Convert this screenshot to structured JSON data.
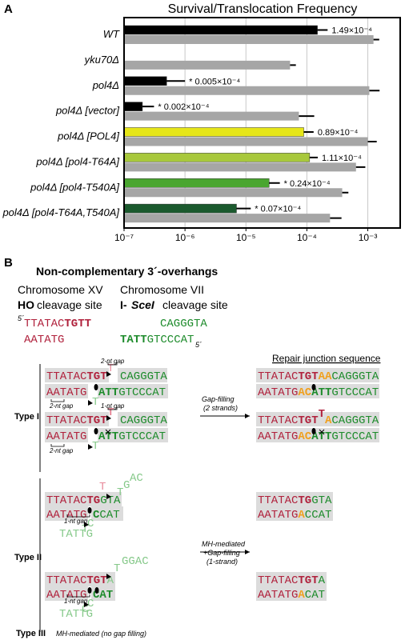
{
  "panel_label": "A",
  "chart_data": {
    "type": "bar",
    "orientation": "horizontal",
    "title": "Survival/Translocation Frequency",
    "categories": [
      "WT",
      "yku70Δ",
      "pol4Δ",
      "pol4Δ [vector]",
      "pol4Δ [POL4]",
      "pol4Δ [pol4-T64A]",
      "pol4Δ [pol4-T540A]",
      "pol4Δ [pol4-T64A,T540A]"
    ],
    "series": [
      {
        "colors": [
          "#000000",
          "#000000",
          "#000000",
          "#000000",
          "#e6e619",
          "#a8c83c",
          "#4aa630",
          "#1b5a2e"
        ],
        "values": [
          0.000149,
          null,
          5e-07,
          2e-07,
          8.9e-05,
          0.000111,
          2.4e-05,
          7e-06
        ],
        "errors": [
          7e-05,
          null,
          5e-07,
          1.1e-07,
          4e-05,
          4e-05,
          1.2e-05,
          5e-06
        ],
        "value_labels": [
          "1.49×10⁻⁴",
          null,
          "* 0.005×10⁻⁴",
          "* 0.002×10⁻⁴",
          "0.89×10⁻⁴",
          "1.11×10⁻⁴",
          "* 0.24×10⁻⁴",
          "* 0.07×10⁻⁴"
        ]
      },
      {
        "color": "#a6a6a6",
        "values": [
          0.00124,
          5.3e-05,
          0.00106,
          7.4e-05,
          0.001,
          0.00064,
          0.00038,
          0.00024
        ],
        "errors": [
          0.0003,
          1.3e-05,
          0.0005,
          5.8e-05,
          0.0004,
          0.00027,
          0.0001,
          0.00013
        ]
      }
    ],
    "xscale": "log",
    "xlim": [
      1e-07,
      0.0034
    ],
    "xticks": [
      {
        "value": 1e-07,
        "label": "10⁻⁷"
      },
      {
        "value": 1e-06,
        "label": "10⁻⁶"
      },
      {
        "value": 1e-05,
        "label": "10⁻⁵"
      },
      {
        "value": 0.0001,
        "label": "10⁻⁴"
      },
      {
        "value": 0.001,
        "label": "10⁻³"
      }
    ],
    "grid": true
  },
  "diagram": {
    "labels": [
      {
        "text": "B",
        "style": "bold"
      },
      {
        "text": "Non-complementary 3´-overhangs",
        "style": "bold"
      },
      {
        "text": "Chromosome XV"
      },
      {
        "text": "HO",
        "style": "bold"
      },
      {
        "text": "cleavage site"
      },
      {
        "text": "Chromosome VII"
      },
      {
        "text": "I-",
        "style": "bold"
      },
      {
        "text": "SceI",
        "style": "bold-italic"
      },
      {
        "text": "cleavage site"
      },
      {
        "text": "Repair junction sequence",
        "style": "underline"
      },
      {
        "text": "Type I",
        "style": "bold"
      },
      {
        "text": "Gap-filling",
        "style": "italic"
      },
      {
        "text": "(2 strands)",
        "style": "italic"
      },
      {
        "text": "Type II",
        "style": "bold"
      },
      {
        "text": "MH-mediated",
        "style": "italic"
      },
      {
        "text": "+Gap-filling",
        "style": "italic"
      },
      {
        "text": "(1-strand)",
        "style": "italic"
      },
      {
        "text": "Type III",
        "style": "bold"
      },
      {
        "text": "MH-mediated (no gap filling)",
        "style": "italic"
      }
    ],
    "notes": [
      "5´",
      "5´",
      "2-nt gap",
      "2-nt gap",
      "1-nt gap",
      "2-nt gap",
      "1-nt gap",
      "1-nt gap"
    ],
    "fragments": [
      {
        "text": "TTATAC",
        "color": "#b0213c"
      },
      {
        "text": "TGTT",
        "color": "#b0213c",
        "bold": true
      },
      {
        "text": "AATATG",
        "color": "#b0213c"
      },
      {
        "text": "CAGGGTA",
        "color": "#1d8b2b"
      },
      {
        "text": "TATT",
        "color": "#1d8b2b",
        "bold": true
      },
      {
        "text": "GTCCCAT",
        "color": "#1d8b2b"
      },
      {
        "text": "TTATAC",
        "color": "#b0213c"
      },
      {
        "text": "TGT",
        "color": "#b0213c",
        "bold": true
      },
      {
        "text": "T",
        "color": "#e8899a"
      },
      {
        "text": "CAGGGTA",
        "color": "#1d8b2b"
      },
      {
        "text": "AATATG",
        "color": "#b0213c"
      },
      {
        "text": "T",
        "color": "#86c98a"
      },
      {
        "text": "ATT",
        "color": "#1d8b2b",
        "bold": true
      },
      {
        "text": "GTCCCAT",
        "color": "#1d8b2b"
      },
      {
        "text": "TTATAC",
        "color": "#b0213c"
      },
      {
        "text": "TGT",
        "color": "#b0213c",
        "bold": true
      },
      {
        "text": "T",
        "color": "#e8899a",
        "bold": true
      },
      {
        "text": "CAGGGTA",
        "color": "#1d8b2b"
      },
      {
        "text": "AATATG",
        "color": "#b0213c"
      },
      {
        "text": "T",
        "color": "#86c98a"
      },
      {
        "text": "ATT",
        "color": "#1d8b2b",
        "bold": true
      },
      {
        "text": "GTCCCAT",
        "color": "#1d8b2b"
      },
      {
        "text": "TTATAC",
        "color": "#b0213c"
      },
      {
        "text": "TGT",
        "color": "#b0213c",
        "bold": true
      },
      {
        "text": "AA",
        "color": "#f0a01e",
        "bold": true
      },
      {
        "text": "CAGGGTA",
        "color": "#1d8b2b"
      },
      {
        "text": "AATATG",
        "color": "#b0213c"
      },
      {
        "text": "AC",
        "color": "#f0a01e",
        "bold": true
      },
      {
        "text": "ATT",
        "color": "#1d8b2b",
        "bold": true
      },
      {
        "text": "GTCCCAT",
        "color": "#1d8b2b"
      },
      {
        "text": "TTATAC",
        "color": "#b0213c"
      },
      {
        "text": "TGT",
        "color": "#b0213c",
        "bold": true
      },
      {
        "text": "T",
        "color": "#b0213c",
        "bold": true
      },
      {
        "text": "A",
        "color": "#f0a01e",
        "bold": true
      },
      {
        "text": "CAGGGTA",
        "color": "#1d8b2b"
      },
      {
        "text": "AATATG",
        "color": "#b0213c"
      },
      {
        "text": "AC",
        "color": "#f0a01e",
        "bold": true
      },
      {
        "text": "ATT",
        "color": "#1d8b2b",
        "bold": true
      },
      {
        "text": "GTCCCAT",
        "color": "#1d8b2b"
      },
      {
        "text": "TTATAC",
        "color": "#b0213c"
      },
      {
        "text": "TG",
        "color": "#b0213c",
        "bold": true
      },
      {
        "text": "GTA",
        "color": "#1d8b2b"
      },
      {
        "text": "T",
        "color": "#e8899a"
      },
      {
        "text": "T",
        "color": "#86c98a"
      },
      {
        "text": "G",
        "color": "#86c98a"
      },
      {
        "text": "AC",
        "color": "#86c98a"
      },
      {
        "text": "AATATG",
        "color": "#b0213c"
      },
      {
        "text": "C",
        "color": "#1d8b2b",
        "bold": true
      },
      {
        "text": "CAT",
        "color": "#1d8b2b"
      },
      {
        "text": "TATTG",
        "color": "#86c98a"
      },
      {
        "text": "T",
        "color": "#86c98a"
      },
      {
        "text": "C",
        "color": "#86c98a"
      },
      {
        "text": "TTATAC",
        "color": "#b0213c"
      },
      {
        "text": "TG",
        "color": "#b0213c",
        "bold": true
      },
      {
        "text": "GTA",
        "color": "#1d8b2b"
      },
      {
        "text": "AATATG",
        "color": "#b0213c"
      },
      {
        "text": "A",
        "color": "#f0a01e",
        "bold": true
      },
      {
        "text": "CCAT",
        "color": "#1d8b2b"
      },
      {
        "text": "TTATAC",
        "color": "#b0213c"
      },
      {
        "text": "TGT",
        "color": "#b0213c",
        "bold": true
      },
      {
        "text": "A",
        "color": "#86c98a"
      },
      {
        "text": "T",
        "color": "#86c98a"
      },
      {
        "text": "GGAC",
        "color": "#86c98a"
      },
      {
        "text": "AATATG",
        "color": "#b0213c"
      },
      {
        "text": "CAT",
        "color": "#1d8b2b",
        "bold": true
      },
      {
        "text": "TATTG",
        "color": "#86c98a"
      },
      {
        "text": "C",
        "color": "#86c98a"
      },
      {
        "text": "C",
        "color": "#86c98a"
      },
      {
        "text": "TTATAC",
        "color": "#b0213c"
      },
      {
        "text": "TGT",
        "color": "#b0213c",
        "bold": true
      },
      {
        "text": "A",
        "color": "#1d8b2b"
      },
      {
        "text": "AATATG",
        "color": "#b0213c"
      },
      {
        "text": "A",
        "color": "#f0a01e",
        "bold": true
      },
      {
        "text": "CAT",
        "color": "#1d8b2b"
      }
    ]
  }
}
